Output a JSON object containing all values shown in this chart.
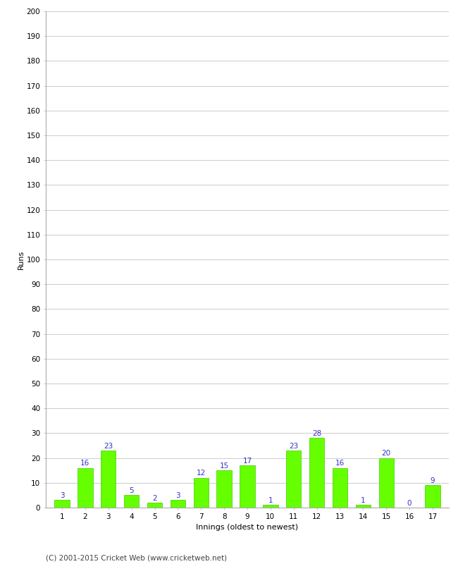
{
  "innings": [
    1,
    2,
    3,
    4,
    5,
    6,
    7,
    8,
    9,
    10,
    11,
    12,
    13,
    14,
    15,
    16,
    17
  ],
  "runs": [
    3,
    16,
    23,
    5,
    2,
    3,
    12,
    15,
    17,
    1,
    23,
    28,
    16,
    1,
    20,
    0,
    9
  ],
  "bar_color": "#66ff00",
  "bar_edge_color": "#44cc00",
  "label_color": "#3333cc",
  "xlabel": "Innings (oldest to newest)",
  "ylabel": "Runs",
  "ylim": [
    0,
    200
  ],
  "yticks": [
    0,
    10,
    20,
    30,
    40,
    50,
    60,
    70,
    80,
    90,
    100,
    110,
    120,
    130,
    140,
    150,
    160,
    170,
    180,
    190,
    200
  ],
  "grid_color": "#cccccc",
  "background_color": "#ffffff",
  "footer_text": "(C) 2001-2015 Cricket Web (www.cricketweb.net)",
  "footer_color": "#444444",
  "label_fontsize": 7.5,
  "axis_label_fontsize": 8,
  "tick_label_fontsize": 7.5,
  "footer_fontsize": 7.5,
  "bar_width": 0.65
}
